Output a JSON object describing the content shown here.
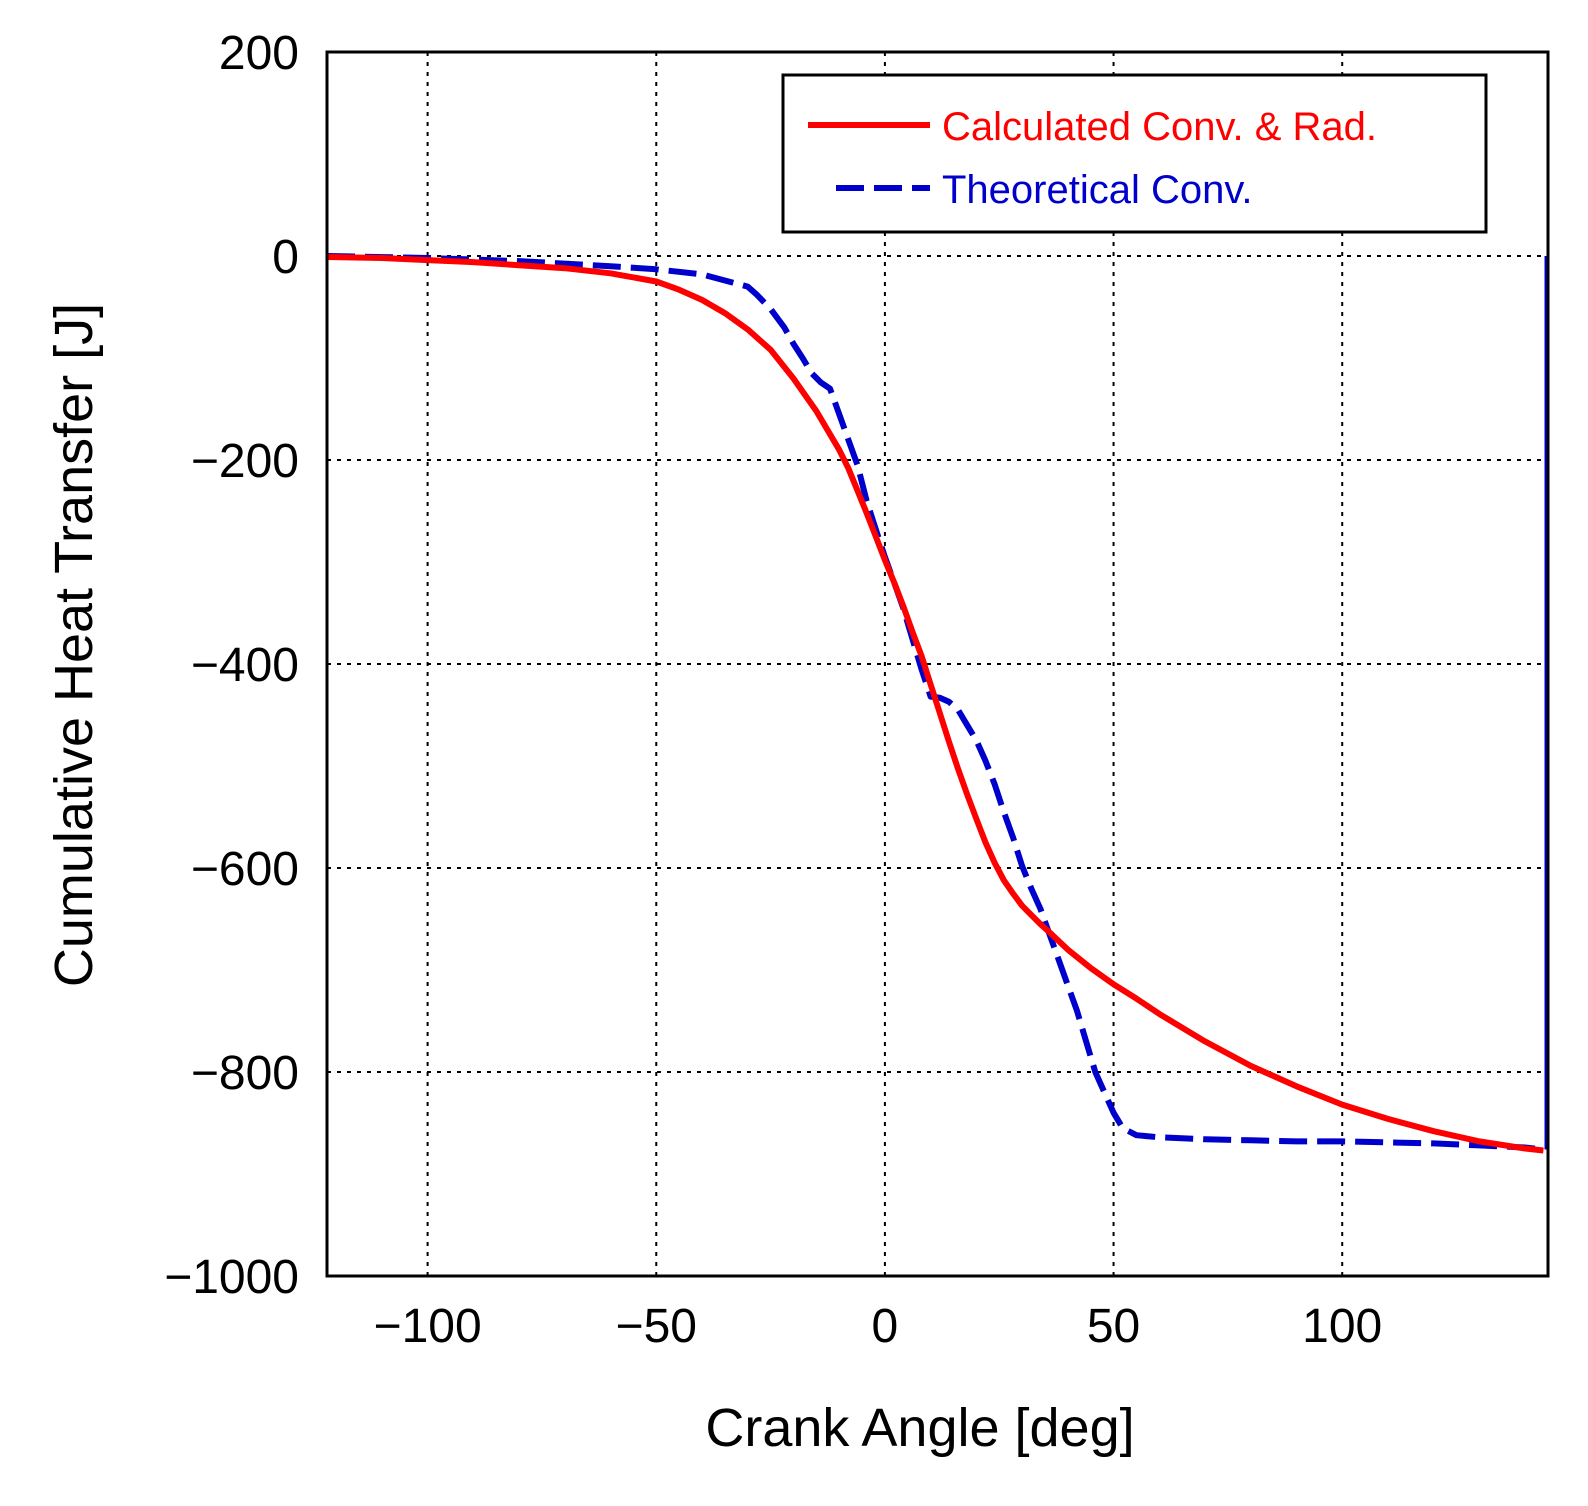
{
  "chart_data": {
    "type": "line",
    "title": "",
    "xlabel": "Crank Angle [deg]",
    "ylabel": "Cumulative Heat Transfer [J]",
    "xlim": [
      -122,
      145
    ],
    "ylim": [
      -1000,
      200
    ],
    "xticks": [
      -100,
      -50,
      0,
      50,
      100
    ],
    "yticks": [
      200,
      0,
      -200,
      -400,
      -600,
      -800,
      -1000
    ],
    "xtick_labels": [
      "−100",
      "−50",
      "0",
      "50",
      "100"
    ],
    "ytick_labels": [
      "200",
      "0",
      "−200",
      "−400",
      "−600",
      "−800",
      "−1000"
    ],
    "grid": true,
    "legend_position": "top-right",
    "series": [
      {
        "name": "Calculated Conv. & Rad.",
        "color": "#ff0000",
        "style": "solid",
        "x": [
          -122,
          -110,
          -100,
          -90,
          -80,
          -70,
          -60,
          -50,
          -45,
          -40,
          -35,
          -30,
          -25,
          -20,
          -15,
          -10,
          -8,
          -6,
          -4,
          -2,
          0,
          2,
          4,
          6,
          8,
          10,
          12,
          14,
          16,
          18,
          20,
          22,
          24,
          26,
          28,
          30,
          32,
          34,
          36,
          40,
          45,
          50,
          55,
          60,
          70,
          80,
          90,
          100,
          110,
          120,
          130,
          140,
          144
        ],
        "y": [
          -1,
          -2,
          -4,
          -6,
          -9,
          -12,
          -17,
          -25,
          -33,
          -43,
          -56,
          -72,
          -92,
          -120,
          -152,
          -190,
          -208,
          -230,
          -252,
          -275,
          -298,
          -320,
          -343,
          -368,
          -392,
          -420,
          -448,
          -476,
          -503,
          -528,
          -552,
          -575,
          -595,
          -612,
          -625,
          -637,
          -646,
          -655,
          -663,
          -680,
          -698,
          -714,
          -728,
          -743,
          -770,
          -794,
          -814,
          -832,
          -846,
          -858,
          -868,
          -875,
          -877
        ]
      },
      {
        "name": "Theoretical Conv.",
        "color": "#0000cc",
        "style": "dashed",
        "x": [
          -122,
          -100,
          -80,
          -60,
          -50,
          -40,
          -35,
          -30,
          -28,
          -25,
          -22,
          -20,
          -18,
          -16,
          -14,
          -12,
          -10,
          -8,
          -6,
          -4,
          -2,
          0,
          2,
          4,
          6,
          8,
          10,
          12,
          14,
          16,
          18,
          20,
          22,
          24,
          26,
          28,
          30,
          32,
          34,
          36,
          38,
          40,
          42,
          44,
          46,
          48,
          50,
          52,
          55,
          60,
          70,
          80,
          90,
          100,
          110,
          120,
          130,
          140,
          144
        ],
        "y": [
          0,
          -2,
          -5,
          -10,
          -13,
          -18,
          -24,
          -30,
          -38,
          -52,
          -70,
          -86,
          -100,
          -115,
          -124,
          -130,
          -155,
          -180,
          -205,
          -240,
          -268,
          -295,
          -320,
          -345,
          -375,
          -405,
          -432,
          -433,
          -437,
          -445,
          -460,
          -475,
          -495,
          -518,
          -545,
          -570,
          -598,
          -620,
          -640,
          -665,
          -690,
          -715,
          -740,
          -770,
          -800,
          -820,
          -840,
          -855,
          -862,
          -864,
          -866,
          -867,
          -868,
          -868,
          -869,
          -870,
          -872,
          -874,
          -876
        ]
      }
    ]
  }
}
